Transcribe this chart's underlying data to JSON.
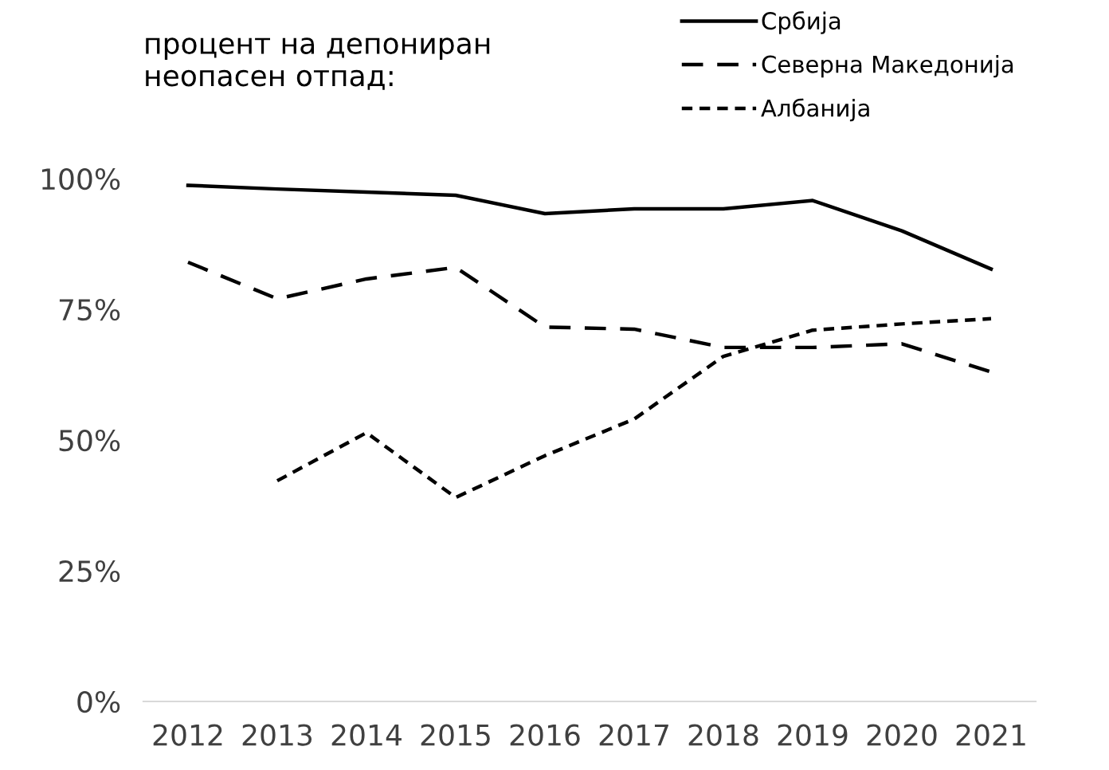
{
  "chart_data": {
    "type": "line",
    "title": "процент на депониран\nнеопасен отпад:",
    "categories": [
      "2012",
      "2013",
      "2014",
      "2015",
      "2016",
      "2017",
      "2018",
      "2019",
      "2020",
      "2021"
    ],
    "series": [
      {
        "name": "Србија",
        "color": "#000000",
        "line_style": "solid",
        "values": [
          98.7,
          98,
          97.4,
          96.8,
          93.3,
          94.2,
          94.2,
          95.8,
          90,
          82.7
        ]
      },
      {
        "name": "Северна Македонија",
        "color": "#000000",
        "line_style": "dashed",
        "values": [
          84,
          77,
          80.8,
          83,
          71.6,
          71.2,
          67.7,
          67.7,
          68.4,
          63
        ]
      },
      {
        "name": "Албанија",
        "color": "#000000",
        "line_style": "dotted",
        "values": [
          null,
          42.2,
          51.4,
          39,
          47,
          54,
          66,
          71,
          72.2,
          73.2
        ]
      }
    ],
    "ylim": [
      0,
      100
    ],
    "yticks": [
      {
        "value": 0,
        "label": "0%"
      },
      {
        "value": 25,
        "label": "25%"
      },
      {
        "value": 50,
        "label": "50%"
      },
      {
        "value": 75,
        "label": "75%"
      },
      {
        "value": 100,
        "label": "100%"
      }
    ],
    "grid": false,
    "legend": "top right",
    "marker": "none"
  }
}
